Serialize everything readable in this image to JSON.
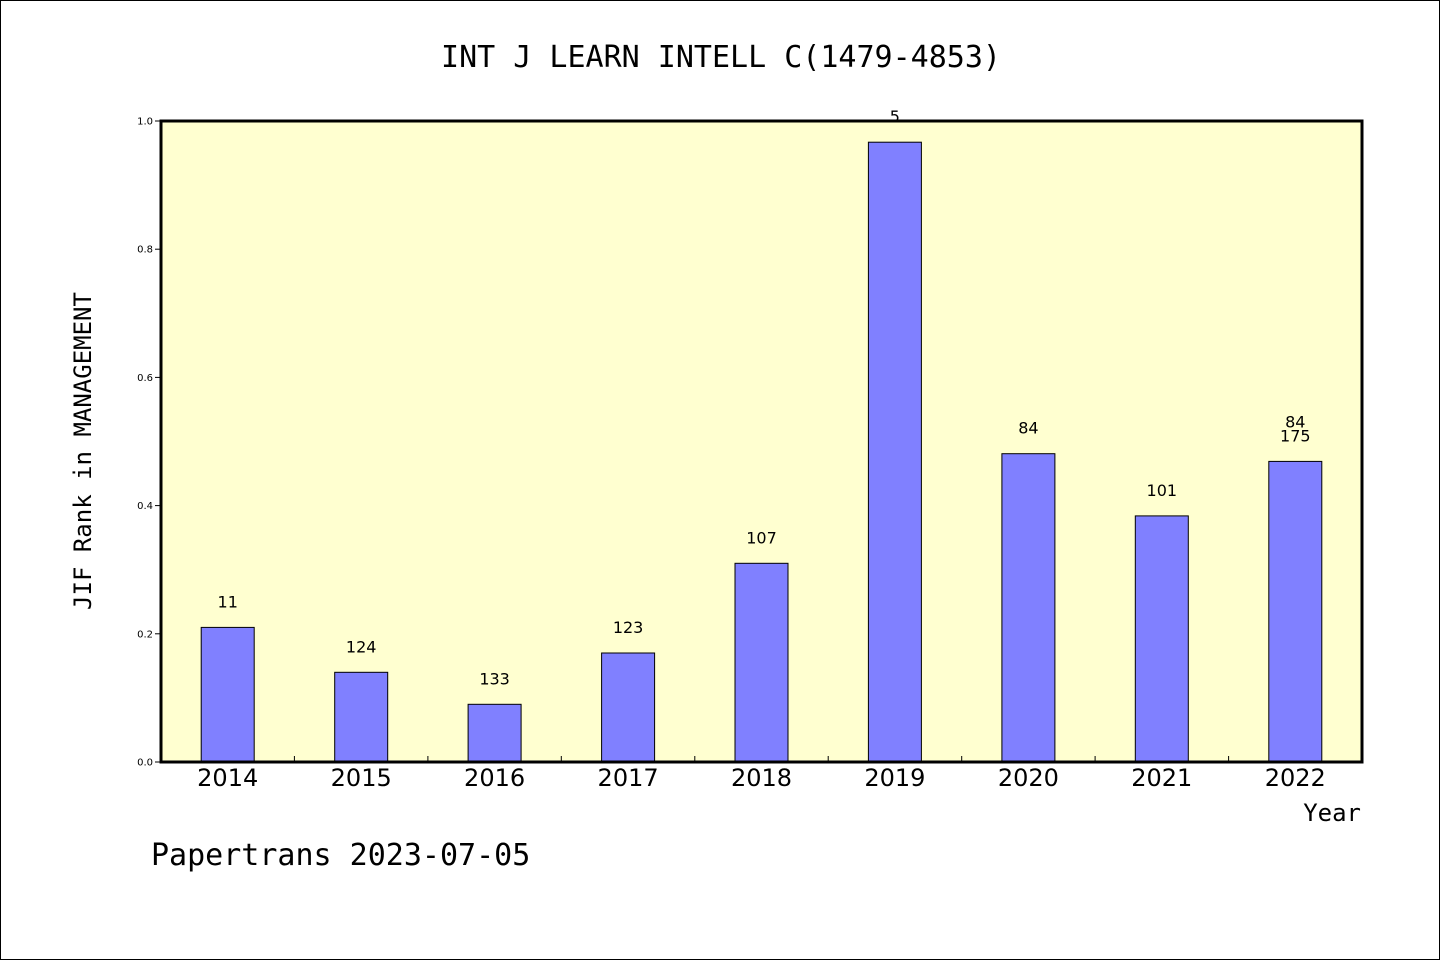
{
  "chart_data": {
    "type": "bar",
    "title": "INT J LEARN INTELL C(1479-4853)",
    "xlabel": "Year",
    "ylabel": "JIF Rank in MANAGEMENT",
    "ylim": [
      0,
      1.0
    ],
    "yticks": [
      "0.0",
      "0.2",
      "0.4",
      "0.6",
      "0.8",
      "1.0"
    ],
    "categories": [
      "2014",
      "2015",
      "2016",
      "2017",
      "2018",
      "2019",
      "2020",
      "2021",
      "2022"
    ],
    "values": [
      0.21,
      0.14,
      0.09,
      0.17,
      0.31,
      0.967,
      0.481,
      0.384,
      0.469
    ],
    "bar_labels": [
      "11",
      "124",
      "133",
      "123",
      "107",
      "5",
      "84",
      "101",
      "175"
    ],
    "extra_labels": [
      {
        "category": "2022",
        "text": "84"
      }
    ],
    "plot_background": "#ffffd0",
    "bar_color": "#8080ff",
    "grid": false
  },
  "footer": {
    "text": "Papertrans 2023-07-05"
  }
}
